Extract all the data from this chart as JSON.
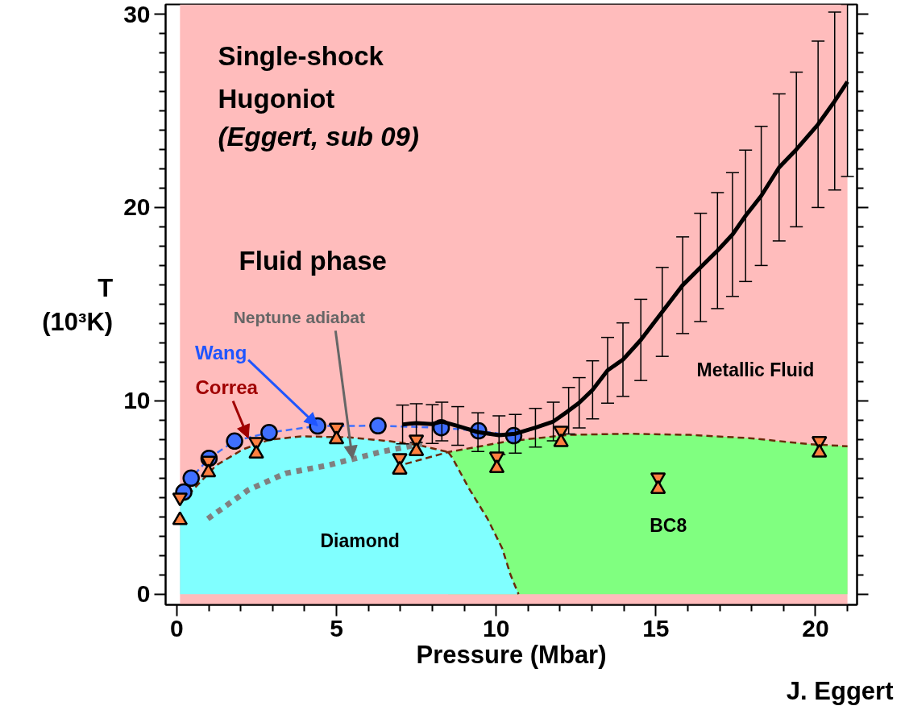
{
  "chart_data": {
    "type": "line",
    "title": "Single-shock\nHugoniot",
    "subtitle": "(Eggert, sub 09)",
    "xlabel": "Pressure (Mbar)",
    "ylabel": "T\n(10³K)",
    "xlim": [
      -0.35,
      21.3
    ],
    "ylim": [
      -0.55,
      30.5
    ],
    "xticks": [
      0,
      {
        "value": 1,
        "label": null
      },
      {
        "value": 2,
        "label": null
      },
      {
        "value": 3,
        "label": null
      },
      {
        "value": 4,
        "label": null
      },
      5,
      {
        "value": 6,
        "label": null
      },
      {
        "value": 7,
        "label": null
      },
      {
        "value": 8,
        "label": null
      },
      {
        "value": 9,
        "label": null
      },
      10,
      {
        "value": 11,
        "label": null
      },
      {
        "value": 12,
        "label": null
      },
      {
        "value": 13,
        "label": null
      },
      {
        "value": 14,
        "label": null
      },
      15,
      {
        "value": 16,
        "label": null
      },
      {
        "value": 17,
        "label": null
      },
      {
        "value": 18,
        "label": null
      },
      {
        "value": 19,
        "label": null
      },
      20,
      {
        "value": 21,
        "label": null
      }
    ],
    "yticks": [
      0,
      {
        "value": 1,
        "label": null
      },
      {
        "value": 2,
        "label": null
      },
      {
        "value": 3,
        "label": null
      },
      {
        "value": 4,
        "label": null
      },
      {
        "value": 5,
        "label": null
      },
      {
        "value": 6,
        "label": null
      },
      {
        "value": 7,
        "label": null
      },
      {
        "value": 8,
        "label": null
      },
      {
        "value": 9,
        "label": null
      },
      10,
      {
        "value": 11,
        "label": null
      },
      {
        "value": 12,
        "label": null
      },
      {
        "value": 13,
        "label": null
      },
      {
        "value": 14,
        "label": null
      },
      {
        "value": 15,
        "label": null
      },
      {
        "value": 16,
        "label": null
      },
      {
        "value": 17,
        "label": null
      },
      {
        "value": 18,
        "label": null
      },
      {
        "value": 19,
        "label": null
      },
      20,
      {
        "value": 21,
        "label": null
      },
      {
        "value": 22,
        "label": null
      },
      {
        "value": 23,
        "label": null
      },
      {
        "value": 24,
        "label": null
      },
      {
        "value": 25,
        "label": null
      },
      {
        "value": 26,
        "label": null
      },
      {
        "value": 27,
        "label": null
      },
      {
        "value": 28,
        "label": null
      },
      {
        "value": 29,
        "label": null
      },
      30
    ],
    "grid": false,
    "bands": [
      {
        "axis": "x",
        "from": 0.1,
        "to": 21,
        "color": "#ffbcbc"
      }
    ],
    "series": [
      {
        "type": "area",
        "color": "#80ff80",
        "x": [
          8.5,
          10.38,
          12.27,
          14.16,
          16.05,
          17.93,
          19.82,
          21
        ],
        "values": [
          7.35,
          7.91,
          8.24,
          8.3,
          8.24,
          8.07,
          7.76,
          7.65
        ]
      },
      {
        "type": "area",
        "color": "#80ffff",
        "x": [
          0.1,
          0.63,
          1.23,
          2.07,
          2.9,
          3.9,
          5.42,
          6.68,
          7.6,
          8.5,
          8.63,
          9.14,
          9.72,
          10.19,
          10.45,
          10.7
        ],
        "values": [
          4.7,
          5.78,
          6.66,
          7.49,
          7.99,
          8.16,
          8.11,
          7.91,
          7.7,
          7.35,
          7.05,
          5.49,
          3.93,
          2.37,
          1.0,
          0
        ]
      },
      {
        "color": "#6b2a0a",
        "line_style": "dashed",
        "marker": "none",
        "x": [
          0.13,
          1.23,
          2.07,
          2.9,
          3.9,
          5.42,
          6.68,
          7.6,
          8.5
        ],
        "values": [
          4.74,
          6.66,
          7.49,
          7.99,
          8.16,
          8.11,
          7.91,
          7.7,
          7.35
        ]
      },
      {
        "color": "#6b2a0a",
        "line_style": "dashed",
        "marker": "none",
        "x": [
          7.16,
          8.5,
          10.38,
          12.27,
          14.16,
          16.05,
          17.93,
          19.82,
          21
        ],
        "values": [
          6.74,
          7.35,
          7.91,
          8.24,
          8.3,
          8.24,
          8.07,
          7.76,
          7.65
        ]
      },
      {
        "color": "#6b2a0a",
        "line_style": "dashed",
        "marker": "none",
        "x": [
          8.5,
          8.63,
          9.14,
          9.72,
          10.19,
          10.45,
          10.7
        ],
        "values": [
          7.35,
          7.05,
          5.49,
          3.93,
          2.37,
          1.0,
          0
        ]
      },
      {
        "color": "#808080",
        "line_style": "dotted",
        "marker": "none",
        "x": [
          0.97,
          2.23,
          3.4,
          4.75,
          5.51,
          6.42,
          7.68
        ],
        "values": [
          3.9,
          5.38,
          6.25,
          6.67,
          6.99,
          7.37,
          7.78
        ]
      },
      {
        "color": "#3f6fff",
        "line_style": "dashed",
        "marker": "circle",
        "x": [
          0.22,
          0.45,
          1.01,
          1.81,
          2.89,
          4.41,
          6.3,
          8.28,
          9.45,
          10.55
        ],
        "values": [
          5.28,
          6.0,
          7.03,
          7.92,
          8.36,
          8.7,
          8.71,
          8.61,
          8.45,
          8.2
        ]
      },
      {
        "color": "#000000",
        "line_style": "solid",
        "marker": "none",
        "x": [
          7.07,
          7.5,
          8.0,
          8.3,
          8.8,
          9.43,
          10.09,
          10.6,
          11.23,
          11.79,
          12.27,
          12.6,
          13.02,
          13.49,
          13.97,
          14.53,
          15.2,
          15.84,
          16.4,
          16.93,
          17.4,
          17.81,
          18.3,
          18.86,
          19.4,
          20.08,
          20.6,
          21.0
        ],
        "values": [
          8.78,
          8.85,
          8.8,
          8.93,
          8.7,
          8.38,
          8.22,
          8.3,
          8.61,
          8.93,
          9.49,
          9.9,
          10.57,
          11.58,
          12.13,
          13.15,
          14.6,
          15.98,
          16.9,
          17.77,
          18.6,
          19.57,
          20.6,
          22.07,
          23.0,
          24.3,
          25.5,
          26.5
        ],
        "errors": [
          1.0,
          1.0,
          1.0,
          1.0,
          1.0,
          1.0,
          1.0,
          1.0,
          1.0,
          1.0,
          1.2,
          1.3,
          1.5,
          1.7,
          1.9,
          2.1,
          2.3,
          2.5,
          2.8,
          3.0,
          3.2,
          3.4,
          3.6,
          3.8,
          4.0,
          4.3,
          4.6,
          [
            21.6,
            30.5
          ]
        ]
      },
      {
        "type": "scatter",
        "color": "#ff8040",
        "marker": "triangle",
        "x": [
          0.1,
          0.99,
          2.49,
          5.0,
          6.98,
          7.5,
          10.02,
          12.03,
          15.07,
          20.12
        ],
        "values": [
          5.0,
          6.9,
          7.87,
          8.61,
          7.04,
          8.0,
          7.12,
          8.46,
          6.04,
          7.92
        ]
      },
      {
        "type": "scatter",
        "color": "#ff8040",
        "marker": "triangle",
        "x": [
          0.1,
          0.99,
          2.49,
          5.0,
          6.98,
          7.5,
          10.02,
          12.03,
          15.07,
          20.12
        ],
        "values": [
          3.83,
          6.3,
          7.27,
          8.01,
          6.44,
          7.4,
          6.52,
          7.86,
          5.44,
          7.32
        ]
      }
    ],
    "annotations": [
      "Fluid phase",
      "Metallic Fluid",
      "Diamond",
      "BC8",
      {
        "text": "Wang",
        "x": 4.41,
        "y": 8.7
      },
      {
        "text": "Correa",
        "x": 2.24,
        "y": 8.07
      },
      {
        "text": "Neptune adiabat",
        "x": 5.5,
        "y": 7.0
      },
      "J. Eggert"
    ]
  }
}
